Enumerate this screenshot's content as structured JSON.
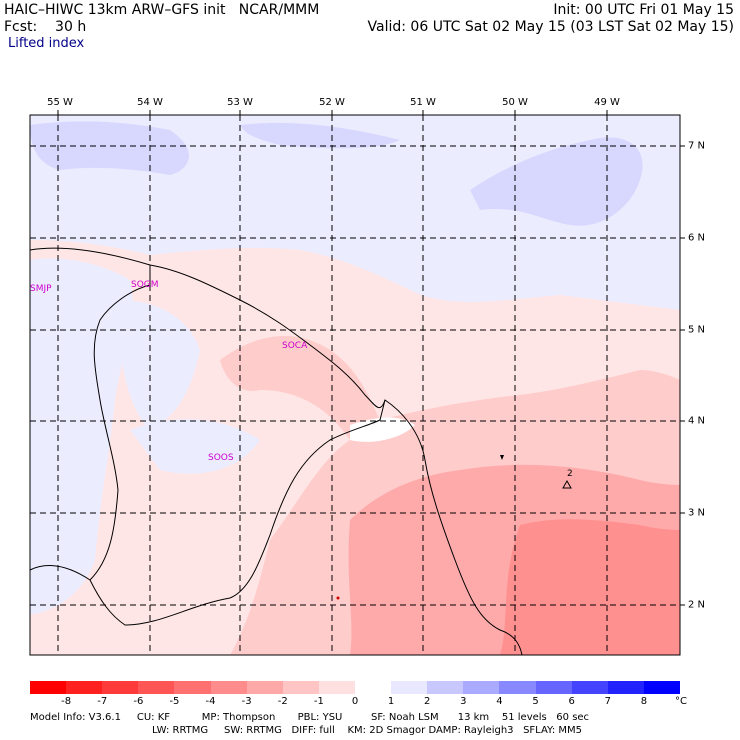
{
  "header": {
    "title": "HAIC–HIWC 13km ARW–GFS init   NCAR/MMM",
    "fcst": "Fcst:    30 h",
    "init": "Init: 00 UTC Fri 01 May 15",
    "valid": "Valid: 06 UTC Sat 02 May 15 (03 LST Sat 02 May 15)",
    "field": "Lifted index"
  },
  "map": {
    "lon_labels": [
      "55 W",
      "54 W",
      "53 W",
      "52 W",
      "51 W",
      "50 W",
      "49 W"
    ],
    "lat_labels": [
      "7 N",
      "6 N",
      "5 N",
      "4 N",
      "3 N",
      "2 N"
    ],
    "stations": [
      "SMJP",
      "SOGM",
      "SOCA",
      "SOOS"
    ],
    "annotation": "2"
  },
  "colorbar": {
    "colors": [
      "#ff0000",
      "#ff2020",
      "#ff3a3a",
      "#ff5555",
      "#ff7070",
      "#ff8c8c",
      "#ffa8a8",
      "#ffc4c4",
      "#ffe0e0",
      "#ffffff",
      "#e8e8ff",
      "#c8c8ff",
      "#aaaaff",
      "#8888ff",
      "#6666ff",
      "#4444ff",
      "#2222ff",
      "#0000ff"
    ],
    "labels": [
      "-8",
      "-7",
      "-6",
      "-5",
      "-4",
      "-3",
      "-2",
      "-1",
      "0",
      "1",
      "2",
      "3",
      "4",
      "5",
      "6",
      "7",
      "8"
    ],
    "unit": "°C"
  },
  "footer": {
    "line1": "Model Info: V3.6.1     CU: KF          MP: Thompson       PBL: YSU         SF: Noah LSM      13 km    51 levels   60 sec",
    "line2": "LW: RRTMG     SW: RRTMG   DIFF: full    KM: 2D Smagor DAMP: Rayleigh3   SFLAY: MM5"
  }
}
